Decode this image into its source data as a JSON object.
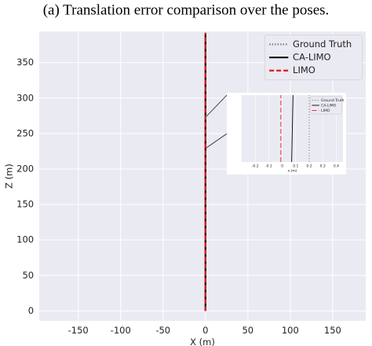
{
  "chart_data": [
    {
      "type": "line",
      "title": "(a) Translation error comparison over the poses.",
      "xlabel": "X (m)",
      "ylabel": "Z (m)",
      "xlim": [
        -196,
        189
      ],
      "ylim": [
        -14,
        394
      ],
      "xticks": [
        -150,
        -100,
        -50,
        0,
        50,
        100,
        150
      ],
      "yticks": [
        0,
        50,
        100,
        150,
        200,
        250,
        300,
        350
      ],
      "grid": true,
      "legend": "upper right",
      "series": [
        {
          "name": "Ground Truth",
          "color": "#808080",
          "style": "dotted",
          "x": [
            0,
            0
          ],
          "y": [
            0,
            392
          ]
        },
        {
          "name": "CA-LIMO",
          "color": "#000000",
          "style": "solid",
          "x": [
            0,
            0
          ],
          "y": [
            0,
            392
          ]
        },
        {
          "name": "LIMO",
          "color": "#e8151b",
          "style": "dashed",
          "x": [
            0,
            0
          ],
          "y": [
            0,
            392
          ]
        }
      ]
    },
    {
      "type": "line",
      "xlabel": "x (m)",
      "xlim": [
        -0.3,
        0.45
      ],
      "ylim": [
        200,
        300
      ],
      "xticks": [
        -0.2,
        -0.1,
        0.0,
        0.1,
        0.2,
        0.3,
        0.4
      ],
      "grid": true,
      "legend": "upper right",
      "series": [
        {
          "name": "Ground Truth",
          "color": "#808080",
          "style": "dotted",
          "x": [
            0.2,
            0.2
          ],
          "y": [
            200,
            300
          ]
        },
        {
          "name": "CA-LIMO",
          "color": "#000000",
          "style": "solid",
          "x": [
            0.07,
            0.08
          ],
          "y": [
            200,
            300
          ]
        },
        {
          "name": "LIMO",
          "color": "#e8151b",
          "style": "dashed",
          "x": [
            -0.01,
            -0.01
          ],
          "y": [
            200,
            300
          ]
        }
      ]
    }
  ]
}
